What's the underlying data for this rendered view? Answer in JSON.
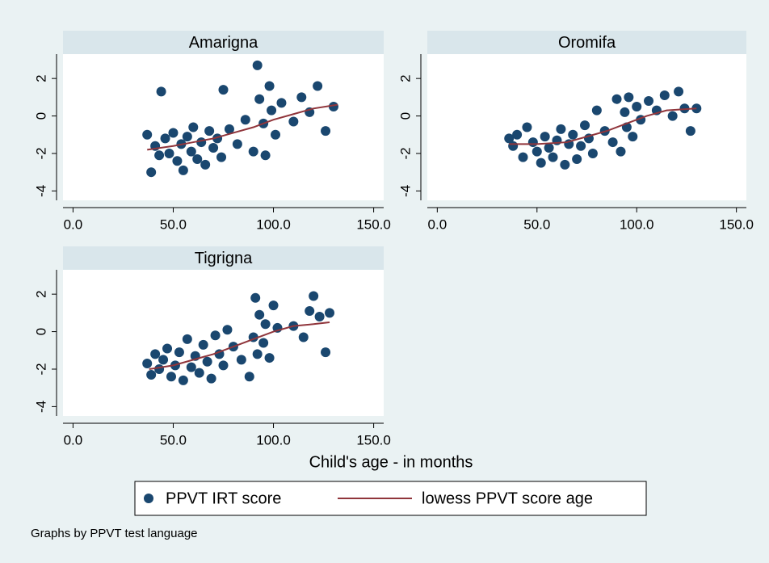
{
  "chart_data": [
    {
      "type": "scatter",
      "title": "Amarigna",
      "series": [
        {
          "name": "PPVT IRT score",
          "color": "#1a476f",
          "x": [
            37,
            39,
            41,
            43,
            44,
            46,
            48,
            50,
            52,
            54,
            55,
            57,
            59,
            60,
            62,
            64,
            66,
            68,
            70,
            72,
            74,
            75,
            78,
            82,
            86,
            90,
            92,
            93,
            95,
            96,
            98,
            99,
            101,
            104,
            110,
            114,
            118,
            122,
            126,
            130
          ],
          "values": [
            -1.0,
            -3.0,
            -1.6,
            -2.1,
            1.3,
            -1.2,
            -2.0,
            -0.9,
            -2.4,
            -1.5,
            -2.9,
            -1.1,
            -1.9,
            -0.6,
            -2.3,
            -1.4,
            -2.6,
            -0.8,
            -1.7,
            -1.2,
            -2.2,
            1.4,
            -0.7,
            -1.5,
            -0.2,
            -1.9,
            2.7,
            0.9,
            -0.4,
            -2.1,
            1.6,
            0.3,
            -1.0,
            0.7,
            -0.3,
            1.0,
            0.2,
            1.6,
            -0.8,
            0.5
          ]
        },
        {
          "name": "lowess PPVT score age",
          "type": "line",
          "color": "#90353b",
          "x": [
            37,
            50,
            60,
            70,
            80,
            90,
            100,
            110,
            120,
            132
          ],
          "values": [
            -1.8,
            -1.6,
            -1.4,
            -1.2,
            -0.9,
            -0.6,
            -0.2,
            0.1,
            0.4,
            0.6
          ]
        }
      ],
      "xlim": [
        -5,
        155
      ],
      "ylim": [
        -4.5,
        3.3
      ],
      "xticks": [
        {
          "value": 0,
          "label": "0.0"
        },
        {
          "value": 50,
          "label": "50.0"
        },
        {
          "value": 100,
          "label": "100.0"
        },
        {
          "value": 150,
          "label": "150.0"
        }
      ],
      "yticks": [
        -4,
        -2,
        0,
        2
      ]
    },
    {
      "type": "scatter",
      "title": "Oromifa",
      "series": [
        {
          "color": "#1a476f",
          "x": [
            36,
            38,
            40,
            43,
            45,
            48,
            50,
            52,
            54,
            56,
            58,
            60,
            62,
            64,
            66,
            68,
            70,
            72,
            74,
            76,
            78,
            80,
            84,
            88,
            90,
            92,
            94,
            95,
            96,
            98,
            100,
            102,
            106,
            110,
            114,
            118,
            121,
            124,
            127,
            130
          ],
          "values": [
            -1.2,
            -1.6,
            -1.0,
            -2.2,
            -0.6,
            -1.4,
            -1.9,
            -2.5,
            -1.1,
            -1.7,
            -2.2,
            -1.3,
            -0.7,
            -2.6,
            -1.5,
            -1.0,
            -2.3,
            -1.6,
            -0.5,
            -1.2,
            -2.0,
            0.3,
            -0.8,
            -1.4,
            0.9,
            -1.9,
            0.2,
            -0.6,
            1.0,
            -1.1,
            0.5,
            -0.2,
            0.8,
            0.3,
            1.1,
            0.0,
            1.3,
            0.4,
            -0.8,
            0.4
          ]
        },
        {
          "type": "line",
          "color": "#90353b",
          "x": [
            36,
            50,
            65,
            75,
            85,
            95,
            105,
            115,
            130
          ],
          "values": [
            -1.5,
            -1.5,
            -1.4,
            -1.1,
            -0.8,
            -0.4,
            0.0,
            0.3,
            0.4
          ]
        }
      ],
      "xlim": [
        -5,
        155
      ],
      "ylim": [
        -4.5,
        3.3
      ],
      "xticks": [
        {
          "value": 0,
          "label": "0.0"
        },
        {
          "value": 50,
          "label": "50.0"
        },
        {
          "value": 100,
          "label": "100.0"
        },
        {
          "value": 150,
          "label": "150.0"
        }
      ],
      "yticks": [
        -4,
        -2,
        0,
        2
      ]
    },
    {
      "type": "scatter",
      "title": "Tigrigna",
      "series": [
        {
          "color": "#1a476f",
          "x": [
            37,
            39,
            41,
            43,
            45,
            47,
            49,
            51,
            53,
            55,
            57,
            59,
            61,
            63,
            65,
            67,
            69,
            71,
            73,
            75,
            77,
            80,
            84,
            88,
            90,
            91,
            92,
            93,
            95,
            96,
            98,
            100,
            102,
            110,
            115,
            118,
            120,
            123,
            126,
            128
          ],
          "values": [
            -1.7,
            -2.3,
            -1.2,
            -2.0,
            -1.5,
            -0.9,
            -2.4,
            -1.8,
            -1.1,
            -2.6,
            -0.4,
            -1.9,
            -1.3,
            -2.2,
            -0.7,
            -1.6,
            -2.5,
            -0.2,
            -1.2,
            -1.8,
            0.1,
            -0.8,
            -1.5,
            -2.4,
            -0.3,
            1.8,
            -1.2,
            0.9,
            -0.6,
            0.4,
            -1.4,
            1.4,
            0.2,
            0.3,
            -0.3,
            1.1,
            1.9,
            0.8,
            -1.1,
            1.0
          ]
        },
        {
          "type": "line",
          "color": "#90353b",
          "x": [
            38,
            50,
            60,
            70,
            80,
            90,
            100,
            110,
            120,
            128
          ],
          "values": [
            -2.0,
            -1.8,
            -1.5,
            -1.2,
            -0.8,
            -0.4,
            0.0,
            0.3,
            0.4,
            0.5
          ]
        }
      ],
      "xlim": [
        -5,
        155
      ],
      "ylim": [
        -4.5,
        3.3
      ],
      "xticks": [
        {
          "value": 0,
          "label": "0.0"
        },
        {
          "value": 50,
          "label": "50.0"
        },
        {
          "value": 100,
          "label": "100.0"
        },
        {
          "value": 150,
          "label": "150.0"
        }
      ],
      "yticks": [
        -4,
        -2,
        0,
        2
      ]
    }
  ],
  "xlabel": "Child's age - in months",
  "note": "Graphs by PPVT test language"
}
